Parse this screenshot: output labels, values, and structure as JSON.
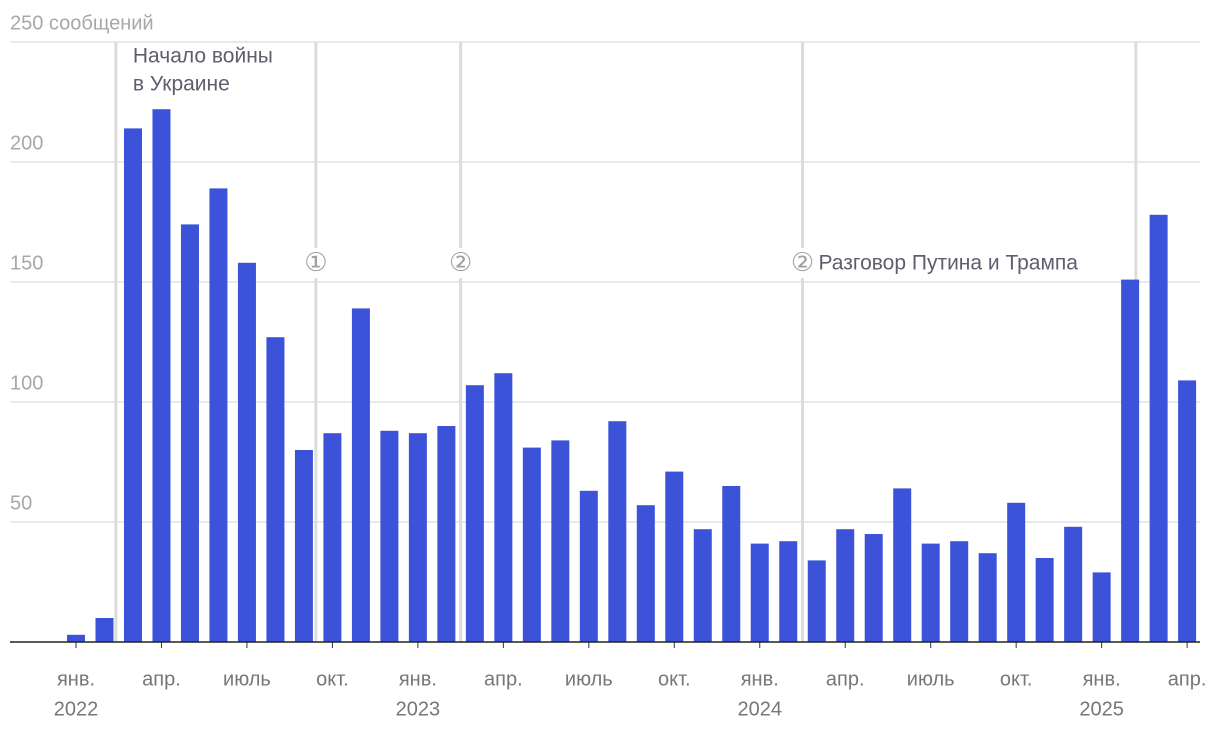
{
  "chart_data": {
    "type": "bar",
    "categories": [
      "янв.",
      null,
      null,
      "апр.",
      null,
      null,
      "июль",
      null,
      null,
      "окт.",
      null,
      null,
      "янв.",
      null,
      null,
      "апр.",
      null,
      null,
      "июль",
      null,
      null,
      "окт.",
      null,
      null,
      "янв.",
      null,
      null,
      "апр.",
      null,
      null,
      "июль",
      null,
      null,
      "окт.",
      null,
      null,
      "янв.",
      null,
      null,
      "апр."
    ],
    "years": [
      "2022",
      null,
      null,
      null,
      null,
      null,
      null,
      null,
      null,
      null,
      null,
      null,
      "2023",
      null,
      null,
      null,
      null,
      null,
      null,
      null,
      null,
      null,
      null,
      null,
      "2024",
      null,
      null,
      null,
      null,
      null,
      null,
      null,
      null,
      null,
      null,
      null,
      "2025",
      null,
      null,
      null
    ],
    "values": [
      3,
      10,
      214,
      222,
      174,
      189,
      158,
      127,
      80,
      87,
      139,
      88,
      87,
      90,
      107,
      112,
      81,
      84,
      63,
      92,
      57,
      71,
      47,
      65,
      41,
      42,
      34,
      47,
      45,
      64,
      41,
      42,
      37,
      58,
      35,
      48,
      29,
      151,
      178,
      109
    ],
    "color": "#3b52d9",
    "ylim": [
      0,
      250
    ],
    "yticks": [
      50,
      100,
      150,
      200,
      {
        "value": 250,
        "label": "250 сообщений"
      }
    ],
    "grid": true,
    "annotations": [
      {
        "lines": [
          "Начало войны",
          "в Украине"
        ]
      },
      {
        "marker": "①"
      },
      {
        "marker": "②"
      },
      {
        "marker": "②",
        "text": "Разговор Путина и Трампа"
      },
      {}
    ]
  }
}
